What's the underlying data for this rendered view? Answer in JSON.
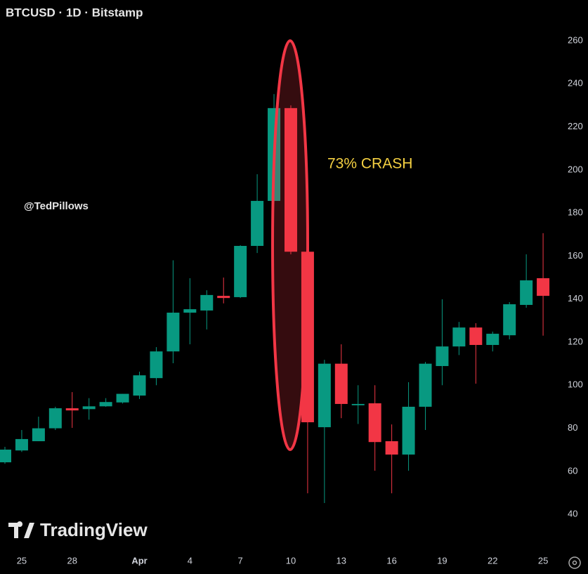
{
  "chart_data": {
    "type": "candlestick",
    "title": "BTCUSD · 1D · Bitstamp",
    "annotation": "73% CRASH",
    "watermark": "@TedPillows",
    "brand": "TradingView",
    "categories": [
      null,
      "25",
      null,
      null,
      "28",
      null,
      null,
      null,
      "Apr",
      null,
      null,
      "4",
      null,
      null,
      "7",
      null,
      null,
      "10",
      null,
      null,
      "13",
      null,
      null,
      "16",
      null,
      null,
      "19",
      null,
      null,
      "22",
      null,
      null,
      "25"
    ],
    "open": [
      64.2,
      69.7,
      74,
      80,
      89.3,
      88.9,
      90.2,
      92,
      95.2,
      103.3,
      115.7,
      133.7,
      134.7,
      141.5,
      140.9,
      164.7,
      185.6,
      228.7,
      162,
      80.5,
      110,
      90.7,
      91.6,
      74,
      67.8,
      90,
      108.9,
      118,
      126.8,
      118.7,
      123.2,
      137.3,
      149.7
    ],
    "high": [
      71.4,
      79.2,
      85.4,
      90,
      96.8,
      94,
      94,
      96,
      106.3,
      117.7,
      158,
      149.7,
      144.1,
      150,
      165,
      198,
      235.2,
      230,
      162,
      111.8,
      119,
      100,
      100,
      81.8,
      101.4,
      110.8,
      139.9,
      129.4,
      128.8,
      124.9,
      138.6,
      160.8,
      170.6
    ],
    "low": [
      63.5,
      69,
      74,
      79.2,
      80.2,
      84,
      90,
      91.5,
      93.6,
      100,
      110.2,
      119,
      125.9,
      138,
      140.5,
      161.4,
      185,
      160.8,
      49.8,
      45.3,
      84.7,
      82,
      60.3,
      49.8,
      60.3,
      79.2,
      100,
      114,
      100.7,
      115.7,
      121.3,
      136,
      123
    ],
    "close": [
      70.1,
      75,
      80,
      89.3,
      88.3,
      90.2,
      92.2,
      96,
      104.6,
      115.7,
      133.7,
      135.3,
      141.9,
      140.5,
      164.7,
      185.6,
      228.7,
      162,
      82.8,
      110,
      91.3,
      91.3,
      73.6,
      67.8,
      90,
      110,
      118,
      126.8,
      118.7,
      123.9,
      137.6,
      148.7,
      141.5
    ],
    "up_color": "#089981",
    "down_color": "#f23645",
    "ylim": [
      24.4,
      278.9
    ],
    "yticks": [
      40,
      60,
      80,
      100,
      120,
      140,
      160,
      180,
      200,
      220,
      240,
      260
    ]
  }
}
